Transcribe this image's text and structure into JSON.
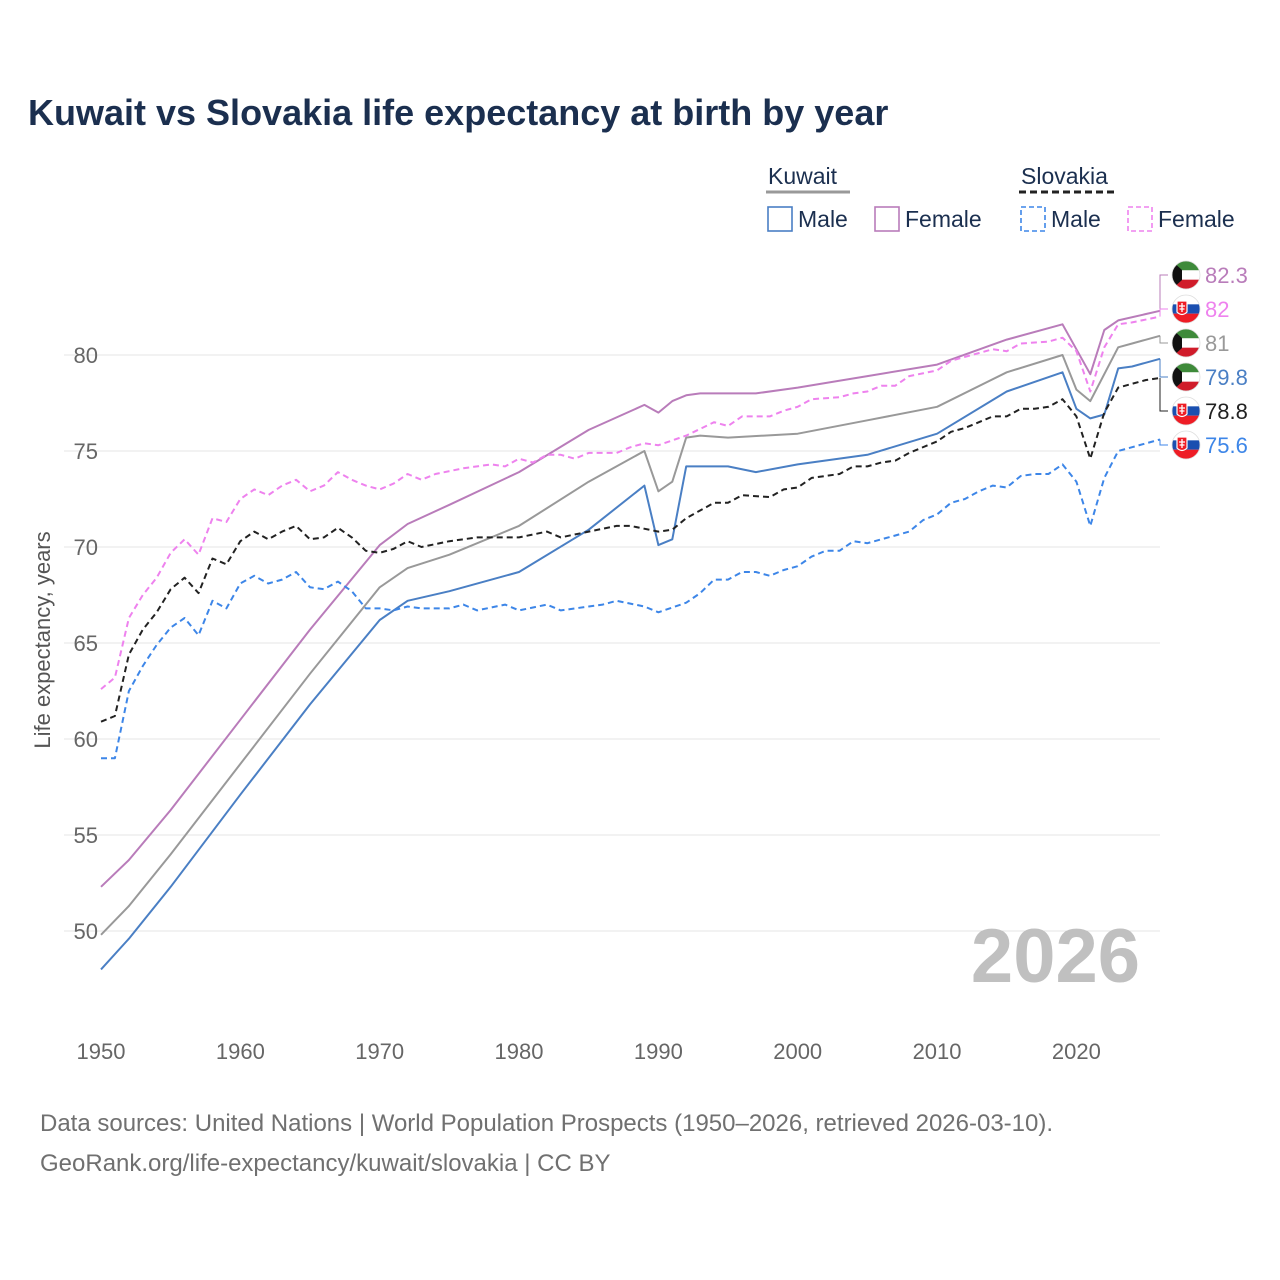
{
  "chart_data": {
    "type": "line",
    "title": "Kuwait vs Slovakia life expectancy at birth by year",
    "xlabel": "",
    "ylabel": "Life expectancy, years",
    "xlim": [
      1950,
      2026
    ],
    "ylim": [
      46,
      84
    ],
    "xticks": [
      1950,
      1960,
      1970,
      1980,
      1990,
      2000,
      2010,
      2020
    ],
    "yticks": [
      50,
      55,
      60,
      65,
      70,
      75,
      80
    ],
    "year_stamp": "2026",
    "legend": {
      "groups": [
        {
          "country": "Kuwait",
          "items": [
            "Male",
            "Female"
          ]
        },
        {
          "country": "Slovakia",
          "items": [
            "Male",
            "Female"
          ]
        }
      ]
    },
    "series": [
      {
        "id": "kw-total",
        "name": "Kuwait",
        "group": "Kuwait",
        "sex": "Total",
        "color": "#999999",
        "dashed": false,
        "flag": "kuwait",
        "end_label": "81",
        "points": [
          [
            1950,
            49.8
          ],
          [
            1952,
            51.3
          ],
          [
            1955,
            54.0
          ],
          [
            1960,
            58.7
          ],
          [
            1965,
            63.4
          ],
          [
            1970,
            67.9
          ],
          [
            1972,
            68.9
          ],
          [
            1975,
            69.6
          ],
          [
            1980,
            71.1
          ],
          [
            1985,
            73.4
          ],
          [
            1989,
            75.0
          ],
          [
            1990,
            72.9
          ],
          [
            1991,
            73.4
          ],
          [
            1992,
            75.7
          ],
          [
            1993,
            75.8
          ],
          [
            1995,
            75.7
          ],
          [
            2000,
            75.9
          ],
          [
            2005,
            76.6
          ],
          [
            2010,
            77.3
          ],
          [
            2015,
            79.1
          ],
          [
            2019,
            80.0
          ],
          [
            2020,
            78.2
          ],
          [
            2021,
            77.6
          ],
          [
            2023,
            80.4
          ],
          [
            2024,
            80.6
          ],
          [
            2026,
            81.0
          ]
        ]
      },
      {
        "id": "kw-female",
        "name": "Female",
        "group": "Kuwait",
        "sex": "Female",
        "color": "#b97cba",
        "dashed": false,
        "flag": "kuwait",
        "end_label": "82.3",
        "points": [
          [
            1950,
            52.3
          ],
          [
            1952,
            53.7
          ],
          [
            1955,
            56.3
          ],
          [
            1960,
            61.0
          ],
          [
            1965,
            65.7
          ],
          [
            1970,
            70.1
          ],
          [
            1972,
            71.2
          ],
          [
            1975,
            72.2
          ],
          [
            1980,
            73.9
          ],
          [
            1985,
            76.1
          ],
          [
            1989,
            77.4
          ],
          [
            1990,
            77.0
          ],
          [
            1991,
            77.6
          ],
          [
            1992,
            77.9
          ],
          [
            1993,
            78.0
          ],
          [
            1997,
            78.0
          ],
          [
            2000,
            78.3
          ],
          [
            2005,
            78.9
          ],
          [
            2010,
            79.5
          ],
          [
            2015,
            80.8
          ],
          [
            2019,
            81.6
          ],
          [
            2021,
            79.0
          ],
          [
            2022,
            81.3
          ],
          [
            2023,
            81.8
          ],
          [
            2026,
            82.3
          ]
        ]
      },
      {
        "id": "kw-male",
        "name": "Male",
        "group": "Kuwait",
        "sex": "Male",
        "color": "#4a7fc4",
        "dashed": false,
        "flag": "kuwait",
        "end_label": "79.8",
        "points": [
          [
            1950,
            48.0
          ],
          [
            1952,
            49.6
          ],
          [
            1955,
            52.3
          ],
          [
            1960,
            57.1
          ],
          [
            1965,
            61.8
          ],
          [
            1970,
            66.2
          ],
          [
            1972,
            67.2
          ],
          [
            1975,
            67.7
          ],
          [
            1980,
            68.7
          ],
          [
            1985,
            70.9
          ],
          [
            1989,
            73.2
          ],
          [
            1990,
            70.1
          ],
          [
            1991,
            70.4
          ],
          [
            1992,
            74.2
          ],
          [
            1995,
            74.2
          ],
          [
            1997,
            73.9
          ],
          [
            2000,
            74.3
          ],
          [
            2005,
            74.8
          ],
          [
            2010,
            75.9
          ],
          [
            2015,
            78.1
          ],
          [
            2019,
            79.1
          ],
          [
            2020,
            77.2
          ],
          [
            2021,
            76.7
          ],
          [
            2022,
            76.9
          ],
          [
            2023,
            79.3
          ],
          [
            2024,
            79.4
          ],
          [
            2026,
            79.8
          ]
        ]
      },
      {
        "id": "sk-total",
        "name": "Slovakia",
        "group": "Slovakia",
        "sex": "Total",
        "color": "#222222",
        "dashed": true,
        "flag": "slovakia",
        "end_label": "78.8",
        "points": [
          [
            1950,
            60.9
          ],
          [
            1951,
            61.2
          ],
          [
            1952,
            64.4
          ],
          [
            1953,
            65.7
          ],
          [
            1954,
            66.6
          ],
          [
            1955,
            67.8
          ],
          [
            1956,
            68.4
          ],
          [
            1957,
            67.6
          ],
          [
            1958,
            69.4
          ],
          [
            1959,
            69.1
          ],
          [
            1960,
            70.3
          ],
          [
            1961,
            70.8
          ],
          [
            1962,
            70.4
          ],
          [
            1963,
            70.8
          ],
          [
            1964,
            71.1
          ],
          [
            1965,
            70.4
          ],
          [
            1966,
            70.5
          ],
          [
            1967,
            71.0
          ],
          [
            1968,
            70.5
          ],
          [
            1969,
            69.8
          ],
          [
            1970,
            69.7
          ],
          [
            1971,
            69.9
          ],
          [
            1972,
            70.3
          ],
          [
            1973,
            70.0
          ],
          [
            1975,
            70.3
          ],
          [
            1977,
            70.5
          ],
          [
            1980,
            70.5
          ],
          [
            1982,
            70.8
          ],
          [
            1983,
            70.5
          ],
          [
            1985,
            70.8
          ],
          [
            1987,
            71.1
          ],
          [
            1988,
            71.1
          ],
          [
            1990,
            70.8
          ],
          [
            1991,
            70.9
          ],
          [
            1992,
            71.5
          ],
          [
            1994,
            72.3
          ],
          [
            1995,
            72.3
          ],
          [
            1996,
            72.7
          ],
          [
            1998,
            72.6
          ],
          [
            1999,
            73.0
          ],
          [
            2000,
            73.1
          ],
          [
            2001,
            73.6
          ],
          [
            2003,
            73.8
          ],
          [
            2004,
            74.2
          ],
          [
            2005,
            74.2
          ],
          [
            2006,
            74.4
          ],
          [
            2007,
            74.5
          ],
          [
            2008,
            74.9
          ],
          [
            2010,
            75.5
          ],
          [
            2011,
            76.0
          ],
          [
            2012,
            76.2
          ],
          [
            2014,
            76.8
          ],
          [
            2015,
            76.8
          ],
          [
            2016,
            77.2
          ],
          [
            2017,
            77.2
          ],
          [
            2018,
            77.3
          ],
          [
            2019,
            77.7
          ],
          [
            2020,
            76.8
          ],
          [
            2021,
            74.6
          ],
          [
            2022,
            77.0
          ],
          [
            2023,
            78.3
          ],
          [
            2024,
            78.5
          ],
          [
            2025,
            78.7
          ],
          [
            2026,
            78.8
          ]
        ]
      },
      {
        "id": "sk-female",
        "name": "Female",
        "group": "Slovakia",
        "sex": "Female",
        "color": "#ee82ee",
        "dashed": true,
        "flag": "slovakia",
        "end_label": "82",
        "points": [
          [
            1950,
            62.6
          ],
          [
            1951,
            63.2
          ],
          [
            1952,
            66.3
          ],
          [
            1953,
            67.5
          ],
          [
            1954,
            68.4
          ],
          [
            1955,
            69.7
          ],
          [
            1956,
            70.4
          ],
          [
            1957,
            69.6
          ],
          [
            1958,
            71.5
          ],
          [
            1959,
            71.3
          ],
          [
            1960,
            72.5
          ],
          [
            1961,
            73.0
          ],
          [
            1962,
            72.7
          ],
          [
            1963,
            73.2
          ],
          [
            1964,
            73.5
          ],
          [
            1965,
            72.9
          ],
          [
            1966,
            73.2
          ],
          [
            1967,
            73.9
          ],
          [
            1968,
            73.5
          ],
          [
            1969,
            73.2
          ],
          [
            1970,
            73.0
          ],
          [
            1971,
            73.3
          ],
          [
            1972,
            73.8
          ],
          [
            1973,
            73.5
          ],
          [
            1974,
            73.8
          ],
          [
            1976,
            74.1
          ],
          [
            1978,
            74.3
          ],
          [
            1979,
            74.2
          ],
          [
            1980,
            74.6
          ],
          [
            1981,
            74.4
          ],
          [
            1982,
            74.8
          ],
          [
            1983,
            74.8
          ],
          [
            1984,
            74.6
          ],
          [
            1985,
            74.9
          ],
          [
            1987,
            74.9
          ],
          [
            1988,
            75.2
          ],
          [
            1989,
            75.4
          ],
          [
            1990,
            75.3
          ],
          [
            1992,
            75.8
          ],
          [
            1994,
            76.5
          ],
          [
            1995,
            76.3
          ],
          [
            1996,
            76.8
          ],
          [
            1998,
            76.8
          ],
          [
            1999,
            77.1
          ],
          [
            2000,
            77.3
          ],
          [
            2001,
            77.7
          ],
          [
            2003,
            77.8
          ],
          [
            2004,
            78.0
          ],
          [
            2005,
            78.1
          ],
          [
            2006,
            78.4
          ],
          [
            2007,
            78.4
          ],
          [
            2008,
            78.9
          ],
          [
            2010,
            79.2
          ],
          [
            2011,
            79.7
          ],
          [
            2012,
            79.9
          ],
          [
            2014,
            80.3
          ],
          [
            2015,
            80.2
          ],
          [
            2016,
            80.6
          ],
          [
            2018,
            80.7
          ],
          [
            2019,
            80.9
          ],
          [
            2020,
            80.2
          ],
          [
            2021,
            78.1
          ],
          [
            2022,
            80.4
          ],
          [
            2023,
            81.6
          ],
          [
            2024,
            81.7
          ],
          [
            2026,
            82.0
          ]
        ]
      },
      {
        "id": "sk-male",
        "name": "Male",
        "group": "Slovakia",
        "sex": "Male",
        "color": "#3d86e8",
        "dashed": true,
        "flag": "slovakia",
        "end_label": "75.6",
        "points": [
          [
            1950,
            59.0
          ],
          [
            1951,
            59.0
          ],
          [
            1952,
            62.5
          ],
          [
            1953,
            63.8
          ],
          [
            1954,
            64.9
          ],
          [
            1955,
            65.8
          ],
          [
            1956,
            66.3
          ],
          [
            1957,
            65.4
          ],
          [
            1958,
            67.2
          ],
          [
            1959,
            66.8
          ],
          [
            1960,
            68.1
          ],
          [
            1961,
            68.5
          ],
          [
            1962,
            68.1
          ],
          [
            1963,
            68.3
          ],
          [
            1964,
            68.7
          ],
          [
            1965,
            67.9
          ],
          [
            1966,
            67.8
          ],
          [
            1967,
            68.2
          ],
          [
            1968,
            67.7
          ],
          [
            1969,
            66.8
          ],
          [
            1970,
            66.8
          ],
          [
            1971,
            66.7
          ],
          [
            1972,
            66.9
          ],
          [
            1973,
            66.8
          ],
          [
            1975,
            66.8
          ],
          [
            1976,
            67.0
          ],
          [
            1977,
            66.7
          ],
          [
            1979,
            67.0
          ],
          [
            1980,
            66.7
          ],
          [
            1982,
            67.0
          ],
          [
            1983,
            66.7
          ],
          [
            1985,
            66.9
          ],
          [
            1986,
            67.0
          ],
          [
            1987,
            67.2
          ],
          [
            1989,
            66.9
          ],
          [
            1990,
            66.6
          ],
          [
            1992,
            67.1
          ],
          [
            1993,
            67.6
          ],
          [
            1994,
            68.3
          ],
          [
            1995,
            68.3
          ],
          [
            1996,
            68.7
          ],
          [
            1997,
            68.7
          ],
          [
            1998,
            68.5
          ],
          [
            1999,
            68.8
          ],
          [
            2000,
            69.0
          ],
          [
            2001,
            69.5
          ],
          [
            2002,
            69.8
          ],
          [
            2003,
            69.8
          ],
          [
            2004,
            70.3
          ],
          [
            2005,
            70.2
          ],
          [
            2006,
            70.4
          ],
          [
            2007,
            70.6
          ],
          [
            2008,
            70.8
          ],
          [
            2009,
            71.4
          ],
          [
            2010,
            71.7
          ],
          [
            2011,
            72.3
          ],
          [
            2012,
            72.5
          ],
          [
            2013,
            72.9
          ],
          [
            2014,
            73.2
          ],
          [
            2015,
            73.1
          ],
          [
            2016,
            73.7
          ],
          [
            2017,
            73.8
          ],
          [
            2018,
            73.8
          ],
          [
            2019,
            74.3
          ],
          [
            2020,
            73.4
          ],
          [
            2021,
            71.1
          ],
          [
            2022,
            73.6
          ],
          [
            2023,
            75.0
          ],
          [
            2024,
            75.2
          ],
          [
            2025,
            75.4
          ],
          [
            2026,
            75.6
          ]
        ]
      }
    ]
  },
  "source": {
    "line1": "Data sources: United Nations | World Population Prospects (1950–2026, retrieved 2026-03-10).",
    "line2": "GeoRank.org/life-expectancy/kuwait/slovakia | CC BY"
  }
}
